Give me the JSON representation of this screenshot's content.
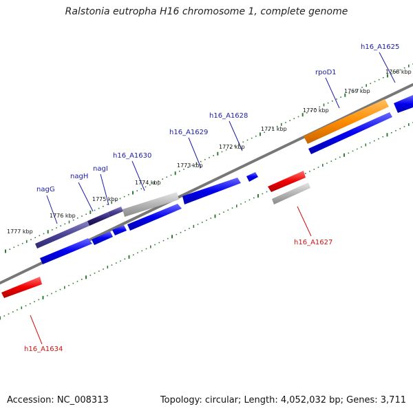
{
  "title": "Ralstonia eutropha H16 chromosome 1, complete genome",
  "footer": {
    "accession": "Accession: NC_008313",
    "stats": "Topology: circular; Length: 4,052,032 bp; Genes: 3,711"
  },
  "colors": {
    "forward_label": "#1a1aa6",
    "reverse_label": "#cc1111",
    "backbone": "#777777",
    "tick_green": "#2e7d32",
    "gene_blue": "#0000ee",
    "gene_red": "#ee0000",
    "gene_orange": "#ff8c00",
    "gene_gray": "#aaaaaa",
    "gene_navy": "#2a1e6e"
  },
  "scale_labels": [
    "1777 kbp",
    "1776 kbp",
    "1775 kbp",
    "1774 kbp",
    "1773 kbp",
    "1772 kbp",
    "1771 kbp",
    "1770 kbp",
    "1769 kbp",
    "1768 kbp"
  ],
  "forward_gene_labels": [
    "nagG",
    "nagH",
    "nagI",
    "h16_A1630",
    "h16_A1629",
    "h16_A1628",
    "rpoD1",
    "h16_A1625"
  ],
  "reverse_gene_labels": [
    "h16_A1627",
    "h16_A1634"
  ]
}
